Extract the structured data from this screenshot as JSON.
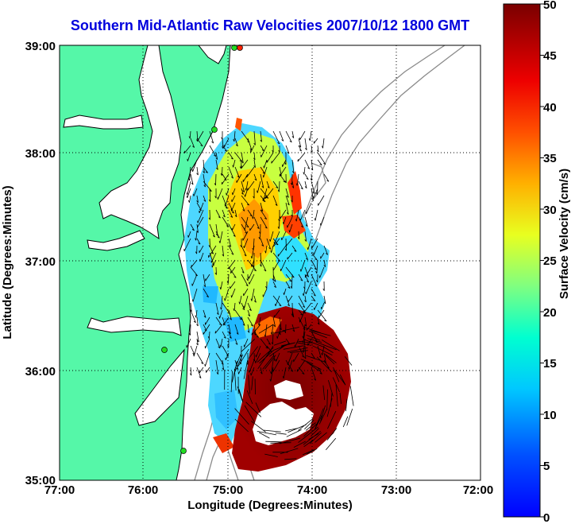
{
  "title": "Southern Mid-Atlantic Raw Velocities 2007/10/12 1800 GMT",
  "map": {
    "xlabel": "Longitude (Degrees:Minutes)",
    "ylabel": "Latitude (Degrees:Minutes)",
    "x_ticks": [
      "77:00",
      "76:00",
      "75:00",
      "74:00",
      "73:00",
      "72:00"
    ],
    "y_ticks": [
      "39:00",
      "38:00",
      "37:00",
      "36:00",
      "35:00"
    ],
    "grid": "dotted",
    "colors": {
      "land": "#55f7a8",
      "coast": "#000000",
      "bathymetry": "#8a8a8a",
      "stations": "#22dd22"
    }
  },
  "colorbar": {
    "label": "Surface Velocity (cm/s)",
    "ticks": [
      "50",
      "45",
      "40",
      "35",
      "30",
      "25",
      "20",
      "15",
      "10",
      "5",
      "0"
    ],
    "range": [
      0,
      50
    ],
    "colormap": "jet"
  }
}
